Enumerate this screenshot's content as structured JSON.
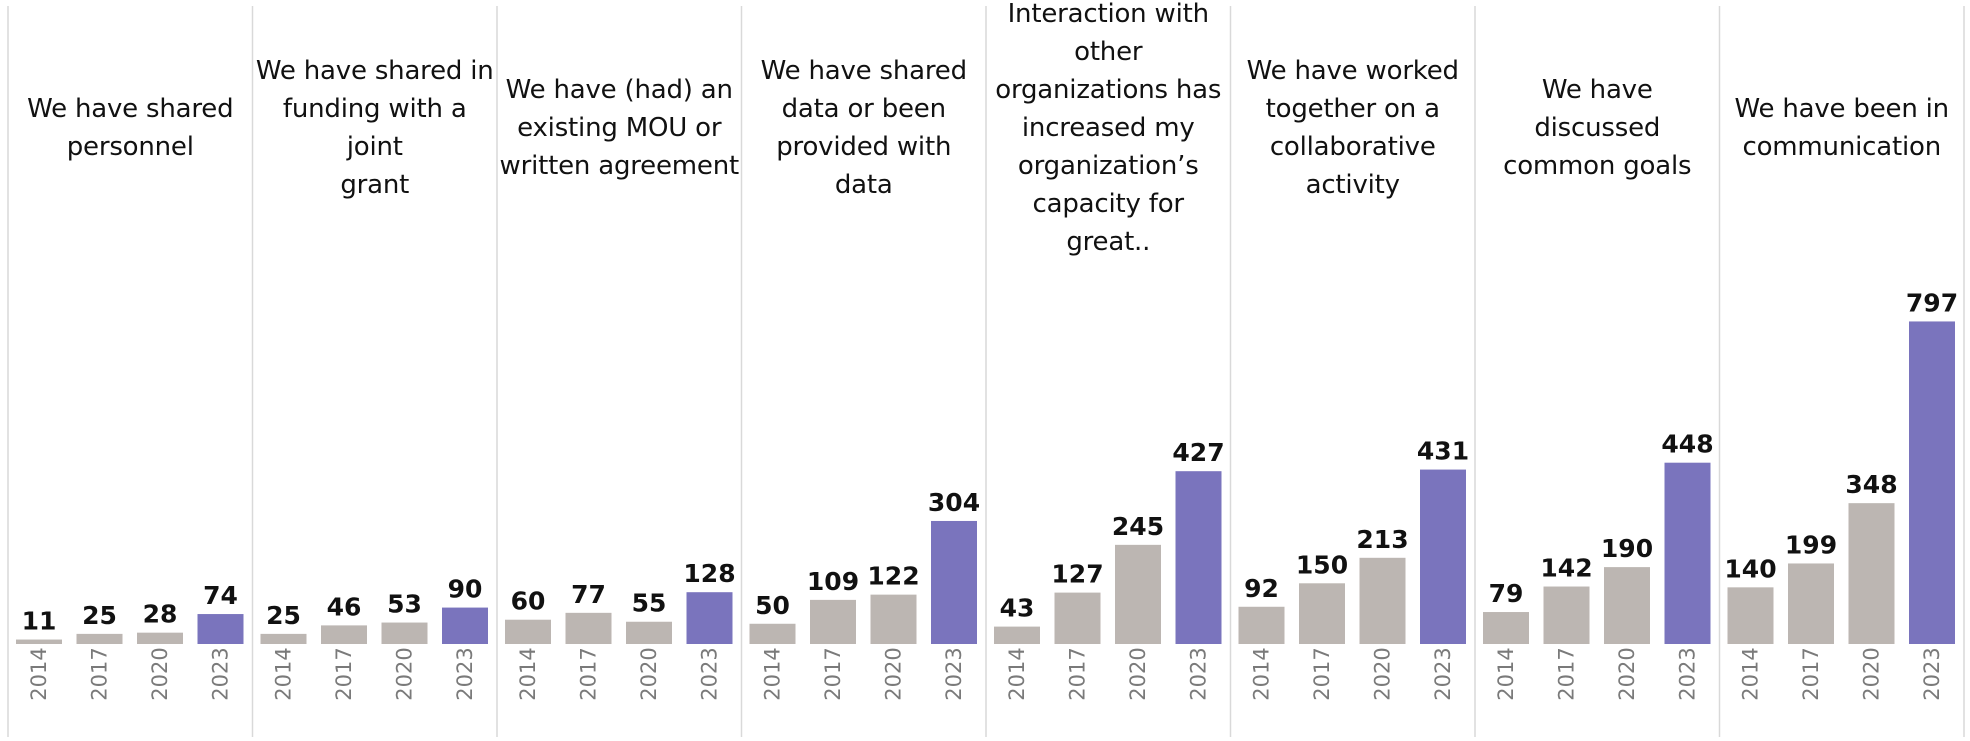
{
  "chart_data": {
    "type": "bar",
    "layout": "small-multiples",
    "categories": [
      "2014",
      "2017",
      "2020",
      "2023"
    ],
    "ylim": [
      0,
      850
    ],
    "grid": false,
    "colors": {
      "default": "#BCB6B2",
      "highlight": "#7A74BD",
      "divider": "#D9D9D9",
      "label": "#111111",
      "tick": "#7A7A7A"
    },
    "highlight_category": "2023",
    "panels": [
      {
        "title": "We have shared personnel",
        "title_lines": [
          "We have shared",
          "personnel"
        ],
        "values": [
          11,
          25,
          28,
          74
        ]
      },
      {
        "title": "We have shared in funding with a joint grant",
        "title_lines": [
          "We have shared in",
          "funding with a joint",
          "grant"
        ],
        "values": [
          25,
          46,
          53,
          90
        ]
      },
      {
        "title": "We have (had) an existing MOU or written agreement",
        "title_lines": [
          "We have (had) an",
          "existing MOU or",
          "written agreement"
        ],
        "values": [
          60,
          77,
          55,
          128
        ]
      },
      {
        "title": "We have shared data or been provided with data",
        "title_lines": [
          "We have shared",
          "data or been",
          "provided with data"
        ],
        "values": [
          50,
          109,
          122,
          304
        ]
      },
      {
        "title": "Interaction with other organizations has increased my organization’s capacity for great..",
        "title_lines": [
          "Interaction with",
          "other",
          "organizations has",
          "increased my",
          "organization’s",
          "capacity for great.."
        ],
        "values": [
          43,
          127,
          245,
          427
        ]
      },
      {
        "title": "We have worked together on a collaborative activity",
        "title_lines": [
          "We have worked",
          "together on a",
          "collaborative",
          "activity"
        ],
        "values": [
          92,
          150,
          213,
          431
        ]
      },
      {
        "title": "We have discussed common goals",
        "title_lines": [
          "We have discussed",
          "common goals"
        ],
        "values": [
          79,
          142,
          190,
          448
        ]
      },
      {
        "title": "We have been in communication",
        "title_lines": [
          "We have been in",
          "communication"
        ],
        "values": [
          140,
          199,
          348,
          797
        ]
      }
    ]
  }
}
